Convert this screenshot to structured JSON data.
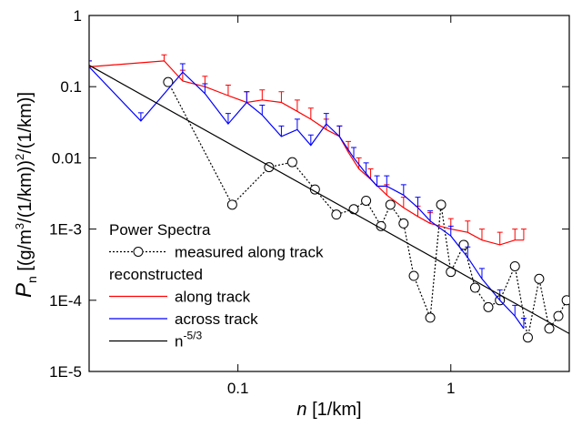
{
  "chart_data": {
    "type": "line",
    "log_x": true,
    "log_y": true,
    "xlabel": {
      "symbol": "n",
      "text": " [1/km]"
    },
    "ylabel": {
      "symbol": "P",
      "sub": "n",
      "text1": " [(g/m",
      "sup1": "3",
      "text2": "/(1/km))",
      "sup2": "2",
      "text3": "/(1/km)]"
    },
    "xlim": [
      0.02,
      3.6
    ],
    "ylim": [
      1e-05,
      1
    ],
    "xticks": [
      0.1,
      1
    ],
    "yticks": [
      1,
      0.1,
      0.01,
      {
        "value": 0.001,
        "label": "1E-3"
      },
      {
        "value": 0.0001,
        "label": "1E-4"
      },
      {
        "value": 1e-05,
        "label": "1E-5"
      }
    ],
    "legend": {
      "title": "Power Spectra",
      "subtitle": "reconstructed",
      "position": "lower-left"
    },
    "series": [
      {
        "name": "measured along track",
        "color": "#000000",
        "line_style": "dotted",
        "marker": "circle",
        "x": [
          0.047,
          0.094,
          0.14,
          0.18,
          0.23,
          0.29,
          0.35,
          0.4,
          0.47,
          0.52,
          0.6,
          0.67,
          0.8,
          0.9,
          1.0,
          1.15,
          1.3,
          1.5,
          1.7,
          2.0,
          2.3,
          2.6,
          2.9,
          3.2,
          3.5
        ],
        "values": [
          0.116,
          0.0022,
          0.0074,
          0.0087,
          0.0036,
          0.0016,
          0.0019,
          0.0025,
          0.0011,
          0.0022,
          0.0012,
          0.00022,
          5.7e-05,
          0.0022,
          0.00025,
          0.0006,
          0.00015,
          8e-05,
          0.0001,
          0.0003,
          3e-05,
          0.0002,
          4e-05,
          6e-05,
          0.0001
        ]
      },
      {
        "name": "along track",
        "color": "#ff0000",
        "line_style": "solid",
        "x": [
          0.02,
          0.045,
          0.055,
          0.07,
          0.09,
          0.11,
          0.13,
          0.16,
          0.19,
          0.22,
          0.26,
          0.3,
          0.33,
          0.37,
          0.42,
          0.5,
          0.6,
          0.7,
          0.8,
          1.0,
          1.2,
          1.4,
          1.7,
          2.0,
          2.2
        ],
        "values": [
          0.19,
          0.23,
          0.12,
          0.1,
          0.075,
          0.06,
          0.065,
          0.06,
          0.045,
          0.035,
          0.025,
          0.02,
          0.012,
          0.007,
          0.005,
          0.003,
          0.002,
          0.0015,
          0.0012,
          0.001,
          0.0009,
          0.0007,
          0.0006,
          0.0007,
          0.0007
        ],
        "errors": [
          0.04,
          0.05,
          0.05,
          0.04,
          0.03,
          0.025,
          0.025,
          0.025,
          0.02,
          0.015,
          0.01,
          0.008,
          0.005,
          0.003,
          0.002,
          0.0012,
          0.0008,
          0.0006,
          0.0005,
          0.0004,
          0.0004,
          0.0003,
          0.0003,
          0.0003,
          0.0003
        ]
      },
      {
        "name": "across track",
        "color": "#0000ff",
        "line_style": "solid",
        "x": [
          0.02,
          0.035,
          0.055,
          0.07,
          0.09,
          0.11,
          0.13,
          0.16,
          0.19,
          0.22,
          0.26,
          0.3,
          0.35,
          0.4,
          0.45,
          0.5,
          0.6,
          0.7,
          0.8,
          1.0,
          1.2,
          1.4,
          1.7,
          2.0,
          2.2
        ],
        "values": [
          0.19,
          0.033,
          0.16,
          0.08,
          0.03,
          0.06,
          0.04,
          0.02,
          0.025,
          0.015,
          0.03,
          0.02,
          0.01,
          0.006,
          0.004,
          0.004,
          0.003,
          0.002,
          0.0013,
          0.0008,
          0.0004,
          0.0002,
          0.0001,
          6e-05,
          4e-05
        ],
        "errors": [
          0.04,
          0.01,
          0.05,
          0.03,
          0.012,
          0.025,
          0.015,
          0.008,
          0.01,
          0.006,
          0.012,
          0.008,
          0.004,
          0.0025,
          0.0016,
          0.0016,
          0.0012,
          0.0008,
          0.0005,
          0.0003,
          0.00016,
          8e-05,
          4e-05,
          2.5e-05,
          1.6e-05
        ]
      },
      {
        "name": "n",
        "exponent": "-5/3",
        "color": "#000000",
        "line_style": "solid",
        "x": [
          0.02,
          3.6
        ],
        "values": [
          0.2,
          3.4e-05
        ]
      }
    ]
  }
}
